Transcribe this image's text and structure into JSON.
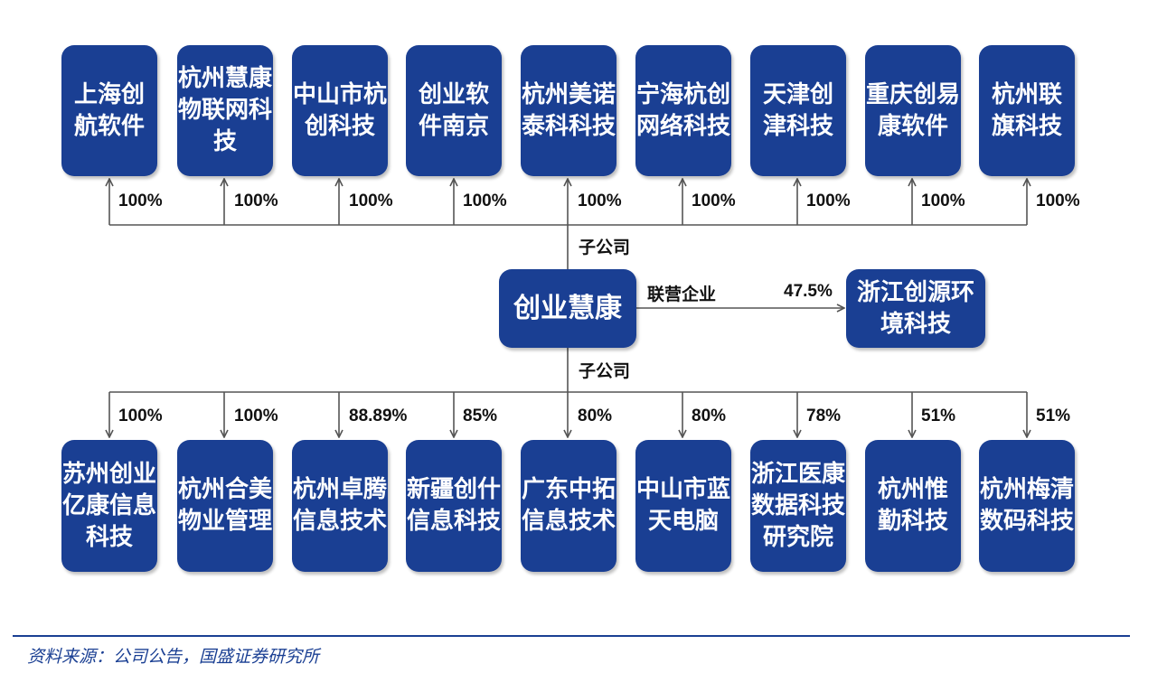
{
  "top_subsidiaries": [
    {
      "name": "上海创航软件",
      "pct": "100%"
    },
    {
      "name": "杭州慧康物联网科技",
      "pct": "100%"
    },
    {
      "name": "中山市杭创科技",
      "pct": "100%"
    },
    {
      "name": "创业软件南京",
      "pct": "100%"
    },
    {
      "name": "杭州美诺泰科科技",
      "pct": "100%"
    },
    {
      "name": "宁海杭创网络科技",
      "pct": "100%"
    },
    {
      "name": "天津创津科技",
      "pct": "100%"
    },
    {
      "name": "重庆创易康软件",
      "pct": "100%"
    },
    {
      "name": "杭州联旗科技",
      "pct": "100%"
    }
  ],
  "bottom_subsidiaries": [
    {
      "name": "苏州创业亿康信息科技",
      "pct": "100%"
    },
    {
      "name": "杭州合美物业管理",
      "pct": "100%"
    },
    {
      "name": "杭州卓腾信息技术",
      "pct": "88.89%"
    },
    {
      "name": "新疆创什信息科技",
      "pct": "85%"
    },
    {
      "name": "广东中拓信息技术",
      "pct": "80%"
    },
    {
      "name": "中山市蓝天电脑",
      "pct": "80%"
    },
    {
      "name": "浙江医康数据科技研究院",
      "pct": "78%"
    },
    {
      "name": "杭州惟勤科技",
      "pct": "51%"
    },
    {
      "name": "杭州梅清数码科技",
      "pct": "51%"
    }
  ],
  "center": {
    "name": "创业慧康"
  },
  "labels": {
    "top_sub": "子公司",
    "bottom_sub": "子公司",
    "affiliate": "联营企业"
  },
  "affiliate": {
    "name": "浙江创源环境科技",
    "pct": "47.5%"
  },
  "source": "资料来源：公司公告，国盛证券研究所",
  "colors": {
    "box": "#1a3f93",
    "line": "#555555",
    "text": "#111111"
  }
}
